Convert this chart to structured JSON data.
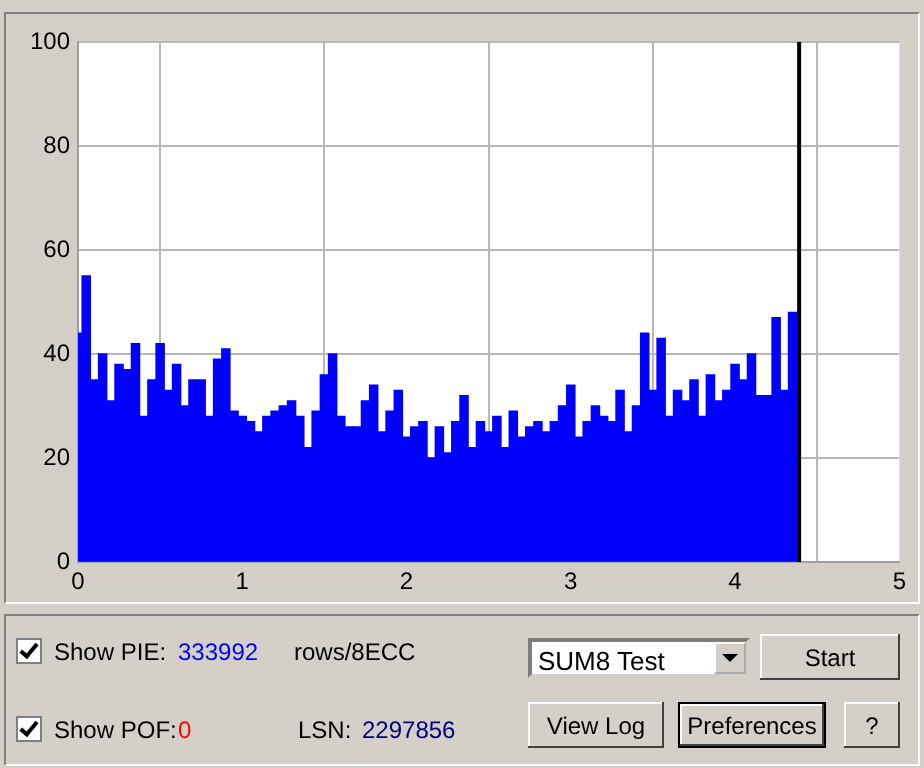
{
  "chart_data": {
    "type": "bar",
    "color": "#0000ff",
    "x": [
      0,
      0.05,
      0.1,
      0.15,
      0.2,
      0.25,
      0.3,
      0.35,
      0.4,
      0.45,
      0.5,
      0.55,
      0.6,
      0.65,
      0.7,
      0.75,
      0.8,
      0.85,
      0.9,
      0.95,
      1,
      1.05,
      1.1,
      1.15,
      1.2,
      1.25,
      1.3,
      1.35,
      1.4,
      1.45,
      1.5,
      1.55,
      1.6,
      1.65,
      1.7,
      1.75,
      1.8,
      1.85,
      1.9,
      1.95,
      2,
      2.05,
      2.1,
      2.15,
      2.2,
      2.25,
      2.3,
      2.35,
      2.4,
      2.45,
      2.5,
      2.55,
      2.6,
      2.65,
      2.7,
      2.75,
      2.8,
      2.85,
      2.9,
      2.95,
      3,
      3.05,
      3.1,
      3.15,
      3.2,
      3.25,
      3.3,
      3.35,
      3.4,
      3.45,
      3.5,
      3.55,
      3.6,
      3.65,
      3.7,
      3.75,
      3.8,
      3.85,
      3.9,
      3.95,
      4,
      4.05,
      4.1,
      4.15,
      4.2,
      4.25,
      4.3,
      4.35
    ],
    "values": [
      44,
      55,
      35,
      40,
      31,
      38,
      37,
      42,
      28,
      35,
      42,
      33,
      38,
      30,
      35,
      35,
      28,
      39,
      41,
      29,
      28,
      27,
      25,
      28,
      29,
      30,
      31,
      28,
      22,
      29,
      36,
      40,
      28,
      26,
      26,
      31,
      34,
      25,
      29,
      33,
      24,
      26,
      27,
      20,
      26,
      21,
      27,
      32,
      22,
      27,
      25,
      28,
      22,
      29,
      24,
      26,
      27,
      25,
      27,
      30,
      34,
      24,
      27,
      30,
      28,
      27,
      33,
      25,
      30,
      44,
      33,
      43,
      28,
      33,
      31,
      35,
      28,
      36,
      31,
      33,
      38,
      35,
      40,
      32,
      32,
      47,
      33,
      48
    ],
    "xlim": [
      0,
      5
    ],
    "xticks": [
      0,
      1,
      2,
      3,
      4,
      5
    ],
    "ylim": [
      0,
      100
    ],
    "yticks": [
      0,
      20,
      40,
      60,
      80,
      100
    ],
    "grid": true,
    "ref_lines": [
      {
        "axis": "x",
        "value": 4.39,
        "color": "#000000"
      }
    ],
    "annotations": [
      "Show PIE:",
      "333992",
      "rows/8ECC",
      "Show POF:",
      "0",
      "LSN:",
      "2297856",
      "SUM8 Test",
      "Start",
      "View Log",
      "Preferences",
      "?"
    ]
  }
}
